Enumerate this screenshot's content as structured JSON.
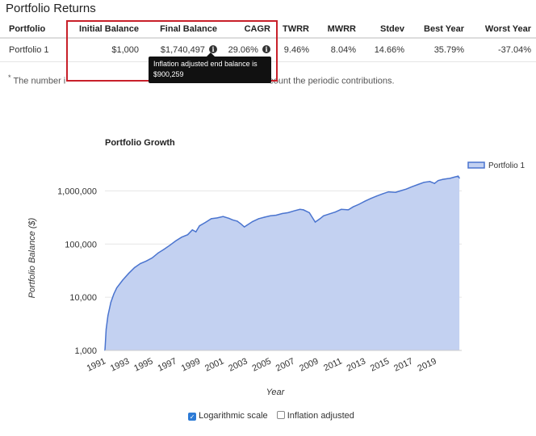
{
  "section_title": "Portfolio Returns",
  "table": {
    "headers": {
      "portfolio": "Portfolio",
      "initial_balance": "Initial Balance",
      "final_balance": "Final Balance",
      "cagr": "CAGR",
      "twrr": "TWRR",
      "mwrr": "MWRR",
      "stdev": "Stdev",
      "best_year": "Best Year",
      "worst_year": "Worst Year"
    },
    "row": {
      "portfolio": "Portfolio 1",
      "initial_balance": "$1,000",
      "final_balance": "$1,740,497",
      "cagr": "29.06%",
      "twrr": "9.46%",
      "mwrr": "8.04%",
      "stdev": "14.66%",
      "best_year": "35.79%",
      "worst_year": "-37.04%"
    },
    "info_icon": "i"
  },
  "footnote": {
    "marker": "*",
    "text_start": "The number i",
    "text_end": "count the periodic contributions."
  },
  "tooltip": {
    "line1": "Inflation adjusted end balance is",
    "line2": "$900,259"
  },
  "colors": {
    "highlight": "#c8202a",
    "series": "#4a74cf",
    "area": "#c3d1f1"
  },
  "chart_data": {
    "type": "area",
    "title": "Portfolio Growth",
    "xlabel": "Year",
    "ylabel": "Portfolio Balance ($)",
    "y_scale": "log",
    "ylim": [
      1000,
      3000000
    ],
    "xlim": [
      1991,
      2021.2
    ],
    "y_ticks": [
      1000,
      10000,
      100000,
      1000000
    ],
    "y_tick_labels": [
      "1,000",
      "10,000",
      "100,000",
      "1,000,000"
    ],
    "x_ticks": [
      1991,
      1993,
      1995,
      1997,
      1999,
      2001,
      2003,
      2005,
      2007,
      2009,
      2011,
      2013,
      2015,
      2017,
      2019
    ],
    "x_tick_labels": [
      "1991",
      "1993",
      "1995",
      "1997",
      "1999",
      "2001",
      "2003",
      "2005",
      "2007",
      "2009",
      "2011",
      "2013",
      "2015",
      "2017",
      "2019"
    ],
    "legend_position": "top-right",
    "grid": "horizontal",
    "series": [
      {
        "name": "Portfolio 1",
        "x": [
          1991.0,
          1991.1,
          1991.25,
          1991.5,
          1991.75,
          1992.0,
          1992.5,
          1993.0,
          1993.5,
          1994.0,
          1994.5,
          1995.0,
          1995.5,
          1996.0,
          1996.5,
          1997.0,
          1997.5,
          1998.0,
          1998.4,
          1998.7,
          1999.0,
          1999.5,
          2000.0,
          2000.5,
          2001.0,
          2001.5,
          2001.8,
          2002.2,
          2002.5,
          2002.8,
          2003.0,
          2003.5,
          2004.0,
          2004.5,
          2005.0,
          2005.5,
          2006.0,
          2006.5,
          2007.0,
          2007.5,
          2007.8,
          2008.3,
          2008.8,
          2009.2,
          2009.5,
          2010.0,
          2010.5,
          2011.0,
          2011.6,
          2012.0,
          2012.5,
          2013.0,
          2013.5,
          2014.0,
          2014.5,
          2015.0,
          2015.6,
          2016.0,
          2016.5,
          2017.0,
          2017.5,
          2018.0,
          2018.5,
          2018.9,
          2019.2,
          2019.6,
          2020.0,
          2020.2,
          2020.5,
          2020.9,
          2021.0
        ],
        "values": [
          1000,
          2500,
          4500,
          8000,
          11500,
          15000,
          21000,
          28000,
          36000,
          43000,
          48000,
          55000,
          68000,
          80000,
          95000,
          115000,
          135000,
          150000,
          185000,
          170000,
          220000,
          255000,
          300000,
          310000,
          330000,
          305000,
          285000,
          270000,
          240000,
          210000,
          225000,
          265000,
          300000,
          320000,
          340000,
          350000,
          375000,
          390000,
          420000,
          450000,
          440000,
          390000,
          260000,
          300000,
          340000,
          370000,
          400000,
          450000,
          440000,
          500000,
          560000,
          640000,
          720000,
          800000,
          880000,
          960000,
          940000,
          1000000,
          1080000,
          1200000,
          1320000,
          1450000,
          1500000,
          1380000,
          1560000,
          1650000,
          1700000,
          1720000,
          1800000,
          1900000,
          1740497
        ]
      }
    ]
  },
  "controls": {
    "log_scale_label": "Logarithmic scale",
    "inflation_label": "Inflation adjusted"
  }
}
